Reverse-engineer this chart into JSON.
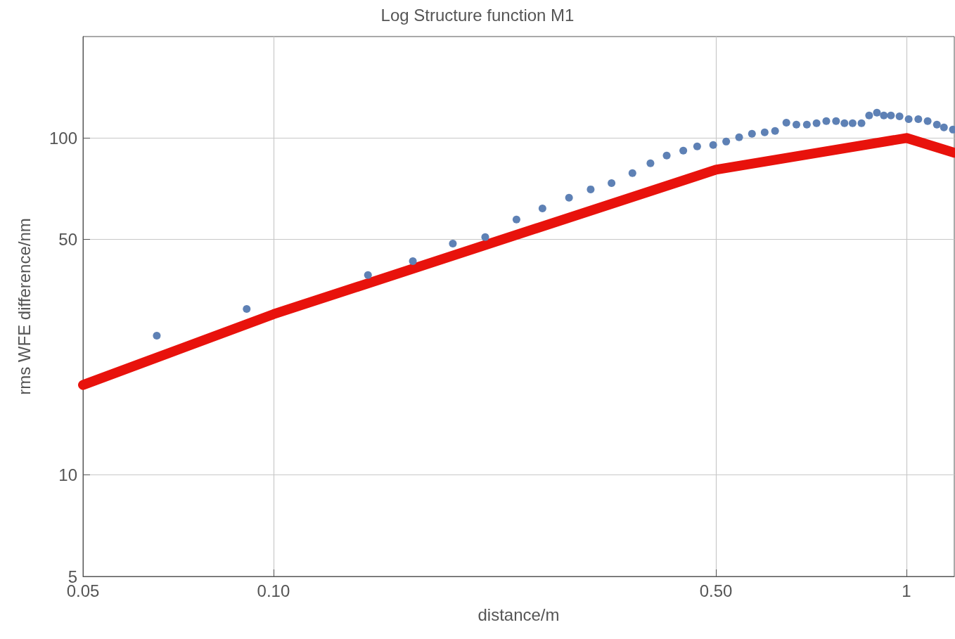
{
  "chart_data": {
    "type": "scatter",
    "title": "Log Structure function M1",
    "xlabel": "distance/m",
    "ylabel": "rms WFE difference/nm",
    "log": "xy",
    "grid": true,
    "xlim": [
      0.05,
      1.19
    ],
    "ylim": [
      5,
      200
    ],
    "xticks": [
      {
        "value": 0.05,
        "label": "0.05"
      },
      {
        "value": 0.1,
        "label": "0.10"
      },
      {
        "value": 0.5,
        "label": "0.50"
      },
      1
    ],
    "yticks": [
      5,
      10,
      50,
      100
    ],
    "series": [
      {
        "color": "#5e81b5",
        "marker": "circle",
        "x": [
          0.0654,
          0.0907,
          0.141,
          0.166,
          0.192,
          0.216,
          0.242,
          0.266,
          0.293,
          0.317,
          0.342,
          0.369,
          0.394,
          0.418,
          0.444,
          0.467,
          0.495,
          0.519,
          0.544,
          0.57,
          0.597,
          0.62,
          0.646,
          0.67,
          0.696,
          0.721,
          0.747,
          0.774,
          0.798,
          0.822,
          0.849,
          0.873,
          0.898,
          0.921,
          0.945,
          0.975,
          1.008,
          1.044,
          1.08,
          1.117,
          1.146,
          1.184
        ],
        "values": [
          25.9,
          31.1,
          39.2,
          43.1,
          48.6,
          50.8,
          57.3,
          61.8,
          66.5,
          70.4,
          73.5,
          78.7,
          84.1,
          88.7,
          91.7,
          94.4,
          95.3,
          97.6,
          100.5,
          102.9,
          103.9,
          104.9,
          111.1,
          109.6,
          109.6,
          110.6,
          112.2,
          112.2,
          110.6,
          110.6,
          110.6,
          116.6,
          118.9,
          116.6,
          116.6,
          116,
          113.8,
          113.8,
          112.2,
          109.6,
          107.5,
          105.9
        ]
      },
      {
        "type": "line",
        "color": "#e8120c",
        "line_style": "solid",
        "marker": "none",
        "x": [
          0.05,
          0.1,
          0.5,
          1,
          1.19
        ],
        "values": [
          18.5,
          30,
          80.5,
          100,
          90.4
        ]
      }
    ]
  }
}
